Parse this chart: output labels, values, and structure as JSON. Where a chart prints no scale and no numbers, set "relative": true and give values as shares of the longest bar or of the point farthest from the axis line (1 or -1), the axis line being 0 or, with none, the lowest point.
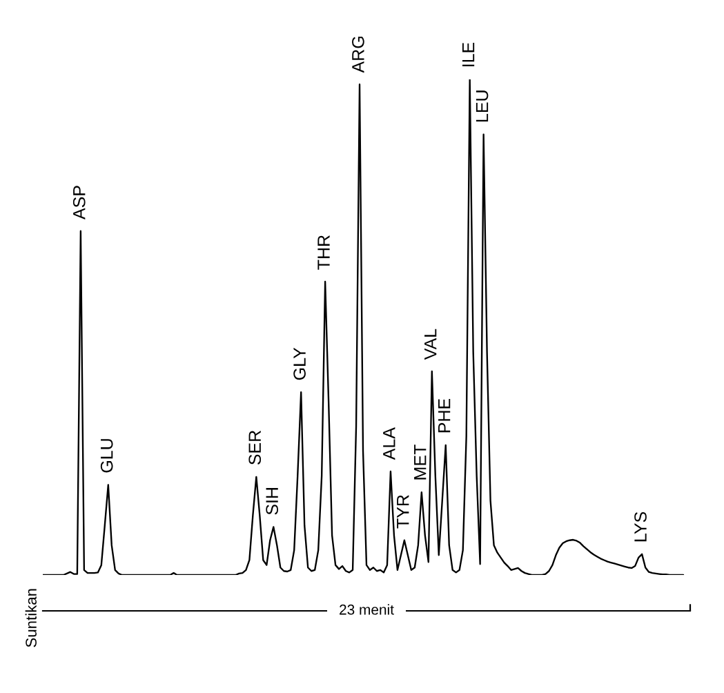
{
  "chart_data": {
    "type": "line",
    "relative": true,
    "xlabel": "23 menit",
    "categories": [
      null,
      null,
      null,
      null,
      null,
      null,
      null,
      null,
      null,
      null,
      null,
      null,
      null,
      null,
      null,
      null,
      null,
      null,
      null,
      null,
      null,
      null,
      null,
      null,
      null,
      null,
      null,
      null,
      null,
      null,
      null,
      null,
      null,
      null,
      null,
      null,
      null,
      null,
      null,
      null,
      null,
      null,
      null,
      null,
      null,
      null,
      null,
      null,
      null,
      null,
      null,
      null,
      null,
      null,
      null,
      null,
      null,
      null,
      null,
      null,
      null,
      null,
      null,
      null,
      null,
      null,
      null,
      null,
      null,
      null,
      null,
      null,
      null,
      null,
      null,
      null,
      null,
      null,
      null,
      null,
      null,
      null,
      null,
      null,
      null,
      null,
      null,
      null,
      null,
      null,
      null,
      null,
      null,
      null,
      null,
      null,
      null,
      null,
      null,
      null,
      null,
      null,
      null,
      null,
      null,
      null,
      null,
      null,
      null,
      null,
      null,
      null,
      null,
      null,
      null,
      null,
      null,
      null,
      null,
      null,
      null,
      null,
      null,
      null,
      null,
      null,
      null,
      null,
      null,
      null,
      null,
      null,
      null,
      null,
      null,
      null,
      null,
      null,
      null,
      null,
      null,
      null,
      null,
      null,
      null,
      null,
      null,
      null,
      null,
      null,
      null,
      null,
      null,
      null,
      null,
      null,
      null,
      null,
      null,
      null,
      null,
      null,
      null,
      null,
      null,
      null,
      null,
      null,
      null,
      null,
      null,
      null,
      null,
      null,
      null,
      null,
      null,
      null,
      null,
      null,
      null,
      null,
      null,
      null,
      null,
      null,
      null,
      null,
      null
    ],
    "series": [
      {
        "color": "#000000",
        "values": [
          0,
          0,
          0,
          0,
          0,
          0,
          0,
          0.003,
          0.006,
          0.002,
          0.002,
          0.694,
          0.01,
          0.004,
          0.004,
          0.004,
          0.005,
          0.02,
          0.1,
          0.182,
          0.06,
          0.01,
          0.003,
          0,
          0,
          0,
          0,
          0,
          0,
          0,
          0,
          0,
          0,
          0,
          0,
          0,
          0,
          0,
          0.004,
          0,
          0,
          0,
          0,
          0,
          0,
          0,
          0,
          0,
          0,
          0,
          0,
          0,
          0,
          0,
          0,
          0,
          0,
          0.003,
          0.004,
          0.01,
          0.03,
          0.12,
          0.198,
          0.12,
          0.03,
          0.02,
          0.07,
          0.097,
          0.06,
          0.015,
          0.008,
          0.007,
          0.01,
          0.05,
          0.2,
          0.369,
          0.1,
          0.015,
          0.008,
          0.01,
          0.05,
          0.2,
          0.592,
          0.35,
          0.08,
          0.02,
          0.012,
          0.018,
          0.008,
          0.005,
          0.01,
          0.3,
          0.99,
          0.25,
          0.02,
          0.01,
          0.015,
          0.008,
          0.01,
          0.005,
          0.02,
          0.209,
          0.08,
          0.01,
          0.04,
          0.07,
          0.04,
          0.01,
          0.015,
          0.06,
          0.167,
          0.08,
          0.026,
          0.411,
          0.2,
          0.04,
          0.15,
          0.262,
          0.06,
          0.01,
          0.005,
          0.01,
          0.05,
          0.28,
          1.0,
          0.45,
          0.2,
          0.022,
          0.889,
          0.45,
          0.15,
          0.06,
          0.045,
          0.035,
          0.025,
          0.018,
          0.01,
          0.012,
          0.014,
          0.008,
          0.004,
          0.002,
          0,
          0,
          0,
          0,
          0.002,
          0.008,
          0.02,
          0.04,
          0.055,
          0.064,
          0.068,
          0.07,
          0.071,
          0.069,
          0.065,
          0.058,
          0.052,
          0.046,
          0.041,
          0.037,
          0.033,
          0.03,
          0.027,
          0.025,
          0.023,
          0.021,
          0.019,
          0.017,
          0.015,
          0.014,
          0.018,
          0.035,
          0.042,
          0.015,
          0.006,
          0.004,
          0.003,
          0.002,
          0.001,
          0.001,
          0,
          0,
          0,
          0,
          0,
          null,
          null
        ]
      }
    ],
    "annotations": [
      {
        "text": "ASP",
        "y": 0.694
      },
      {
        "text": "GLU",
        "y": 0.182
      },
      {
        "text": "SER",
        "y": 0.198
      },
      {
        "text": "SIH",
        "y": 0.097
      },
      {
        "text": "GLY",
        "y": 0.369
      },
      {
        "text": "THR",
        "y": 0.592
      },
      {
        "text": "ARG",
        "y": 0.99
      },
      {
        "text": "ALA",
        "y": 0.209
      },
      {
        "text": "TYR",
        "y": 0.07
      },
      {
        "text": "MET",
        "y": 0.167
      },
      {
        "text": "VAL",
        "y": 0.411
      },
      {
        "text": "PHE",
        "y": 0.262
      },
      {
        "text": "ILE",
        "y": 1.0
      },
      {
        "text": "LEU",
        "y": 0.889
      },
      {
        "text": "LYS",
        "y": 0.042
      },
      "Suntikan"
    ]
  }
}
